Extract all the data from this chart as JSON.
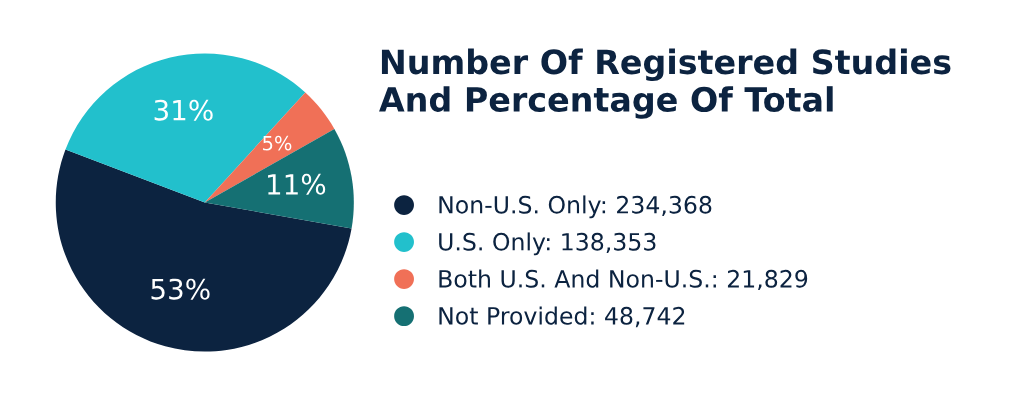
{
  "chart_data": {
    "type": "pie",
    "title": "Number Of Registered Studies\nAnd Percentage Of Total",
    "categories": [
      "Non-U.S. Only: 234,368",
      "U.S. Only: 138,353",
      "Both U.S. And Non-U.S.: 21,829",
      "Not Provided: 48,742"
    ],
    "values": [
      53,
      31,
      5,
      11
    ],
    "value_labels": [
      "53%",
      "31%",
      "5%",
      "11%"
    ],
    "colors": [
      "#0c2340",
      "#22c0cc",
      "#f07057",
      "#157073"
    ],
    "legend": "right"
  }
}
